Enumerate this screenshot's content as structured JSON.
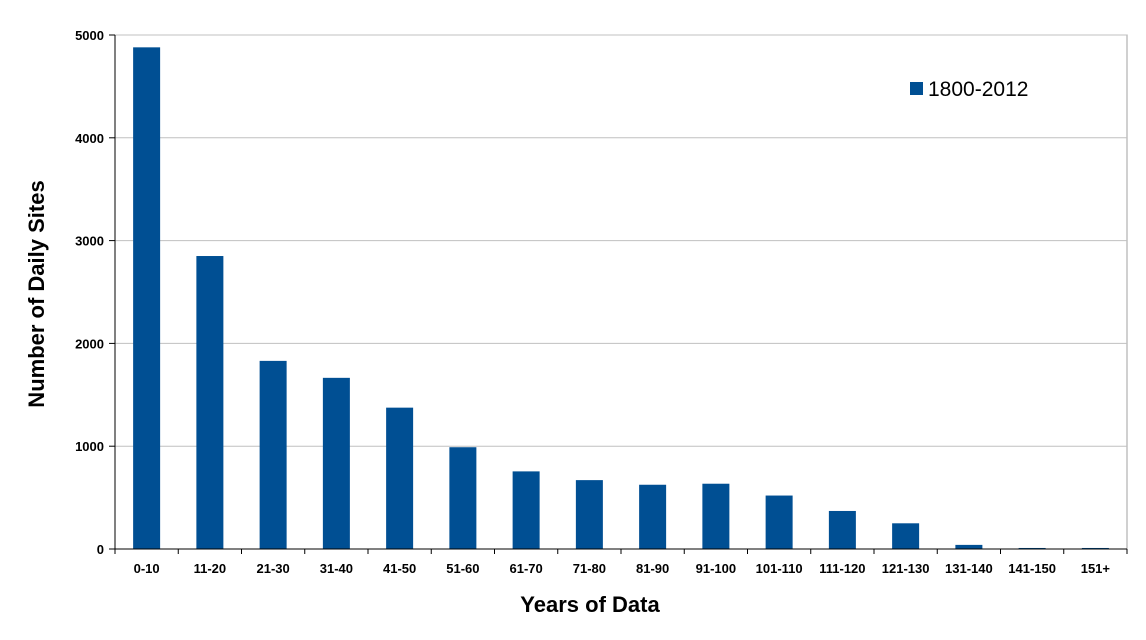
{
  "chart_data": {
    "type": "bar",
    "title": "",
    "xlabel": "Years of Data",
    "ylabel": "Number of Daily Sites",
    "categories": [
      "0-10",
      "11-20",
      "21-30",
      "31-40",
      "41-50",
      "51-60",
      "61-70",
      "71-80",
      "81-90",
      "91-100",
      "101-110",
      "111-120",
      "121-130",
      "131-140",
      "141-150",
      "151+"
    ],
    "series": [
      {
        "name": "1800-2012",
        "values": [
          4880,
          2850,
          1830,
          1665,
          1375,
          990,
          755,
          670,
          625,
          635,
          520,
          370,
          250,
          40,
          10,
          10
        ]
      }
    ],
    "ylim": [
      0,
      5000
    ],
    "yticks": [
      0,
      1000,
      2000,
      3000,
      4000,
      5000
    ],
    "grid": true,
    "legend_position": "top-right",
    "colors": {
      "bar": "#004f93",
      "grid": "#c0c0c0",
      "axis": "#000000"
    }
  }
}
